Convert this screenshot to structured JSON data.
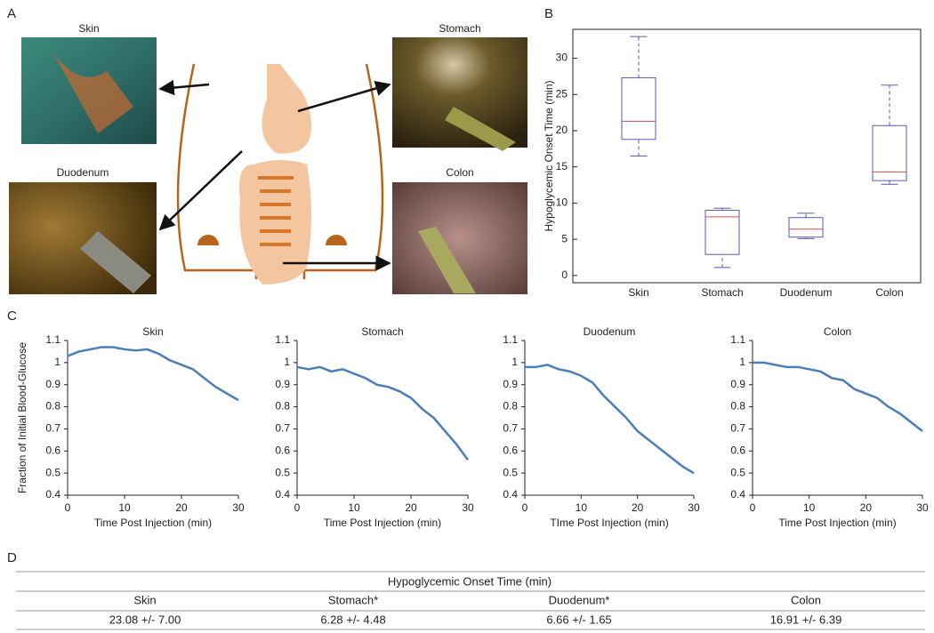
{
  "panel_labels": [
    "A",
    "B",
    "C",
    "D"
  ],
  "images": [
    {
      "label": "Skin"
    },
    {
      "label": "Stomach"
    },
    {
      "label": "Duodenum"
    },
    {
      "label": "Colon"
    }
  ],
  "chart_data": [
    {
      "type": "box",
      "ylabel": "Hypoglycemic Onset Time (min)",
      "categories": [
        "Skin",
        "Stomach",
        "Duodenum",
        "Colon"
      ],
      "min": [
        16.5,
        1.1,
        5.1,
        12.6
      ],
      "q1": [
        18.8,
        2.9,
        5.3,
        13.1
      ],
      "median": [
        21.3,
        8.1,
        6.4,
        14.3
      ],
      "q3": [
        27.3,
        9.0,
        8.0,
        20.7
      ],
      "max": [
        33.0,
        9.3,
        8.6,
        26.3
      ],
      "color": "#5a5ab4",
      "median_color": "#c8504d",
      "ylim": [
        -1,
        34
      ],
      "yticks": [
        0,
        5,
        10,
        15,
        20,
        25,
        30
      ]
    },
    {
      "type": "line",
      "title": "Skin",
      "xlabel": "Time Post Injection (min)",
      "ylabel": "Fraction of Initial Blood-Glucose",
      "x": [
        0,
        2,
        4,
        6,
        8,
        10,
        12,
        14,
        16,
        18,
        20,
        22,
        24,
        26,
        28,
        30
      ],
      "values": [
        1.03,
        1.05,
        1.06,
        1.07,
        1.07,
        1.06,
        1.055,
        1.06,
        1.04,
        1.01,
        0.99,
        0.97,
        0.93,
        0.89,
        0.86,
        0.83
      ],
      "color": "#4a7ebb",
      "xlim": [
        0,
        30
      ],
      "xticks": [
        0,
        10,
        20,
        30
      ],
      "ylim": [
        0.4,
        1.1
      ],
      "yticks": [
        0.4,
        0.5,
        0.6,
        0.7,
        0.8,
        0.9,
        1,
        1.1
      ]
    },
    {
      "type": "line",
      "title": "Stomach",
      "xlabel": "Time Post Injection (min)",
      "x": [
        0,
        2,
        4,
        6,
        8,
        10,
        12,
        14,
        16,
        18,
        20,
        22,
        24,
        26,
        28,
        30
      ],
      "values": [
        0.98,
        0.97,
        0.98,
        0.96,
        0.97,
        0.95,
        0.93,
        0.9,
        0.89,
        0.87,
        0.84,
        0.79,
        0.75,
        0.69,
        0.63,
        0.56
      ],
      "color": "#4a7ebb",
      "xlim": [
        0,
        30
      ],
      "xticks": [
        0,
        10,
        20,
        30
      ],
      "ylim": [
        0.4,
        1.1
      ],
      "yticks": [
        0.4,
        0.5,
        0.6,
        0.7,
        0.8,
        0.9,
        1,
        1.1
      ]
    },
    {
      "type": "line",
      "title": "Duodenum",
      "xlabel": "TIme Post Injection (min)",
      "x": [
        0,
        2,
        4,
        6,
        8,
        10,
        12,
        14,
        16,
        18,
        20,
        22,
        24,
        26,
        28,
        30
      ],
      "values": [
        0.98,
        0.98,
        0.99,
        0.97,
        0.96,
        0.94,
        0.91,
        0.85,
        0.8,
        0.75,
        0.69,
        0.65,
        0.61,
        0.57,
        0.53,
        0.5
      ],
      "color": "#4a7ebb",
      "xlim": [
        0,
        30
      ],
      "xticks": [
        0,
        10,
        20,
        30
      ],
      "ylim": [
        0.4,
        1.1
      ],
      "yticks": [
        0.4,
        0.5,
        0.6,
        0.7,
        0.8,
        0.9,
        1,
        1.1
      ]
    },
    {
      "type": "line",
      "title": "Colon",
      "xlabel": "Time Post Injection (min)",
      "x": [
        0,
        2,
        4,
        6,
        8,
        10,
        12,
        14,
        16,
        18,
        20,
        22,
        24,
        26,
        28,
        30
      ],
      "values": [
        1.0,
        1.0,
        0.99,
        0.98,
        0.98,
        0.97,
        0.96,
        0.93,
        0.92,
        0.88,
        0.86,
        0.84,
        0.8,
        0.77,
        0.73,
        0.69
      ],
      "color": "#4a7ebb",
      "xlim": [
        0,
        30
      ],
      "xticks": [
        0,
        10,
        20,
        30
      ],
      "ylim": [
        0.4,
        1.1
      ],
      "yticks": [
        0.4,
        0.5,
        0.6,
        0.7,
        0.8,
        0.9,
        1,
        1.1
      ]
    }
  ],
  "table": {
    "title": "Hypoglycemic Onset Time (min)",
    "columns": [
      "Skin",
      "Stomach*",
      "Duodenum*",
      "Colon"
    ],
    "rows": [
      [
        "23.08 +/- 7.00",
        "6.28 +/- 4.48",
        "6.66 +/- 1.65",
        "16.91 +/- 6.39"
      ]
    ]
  }
}
